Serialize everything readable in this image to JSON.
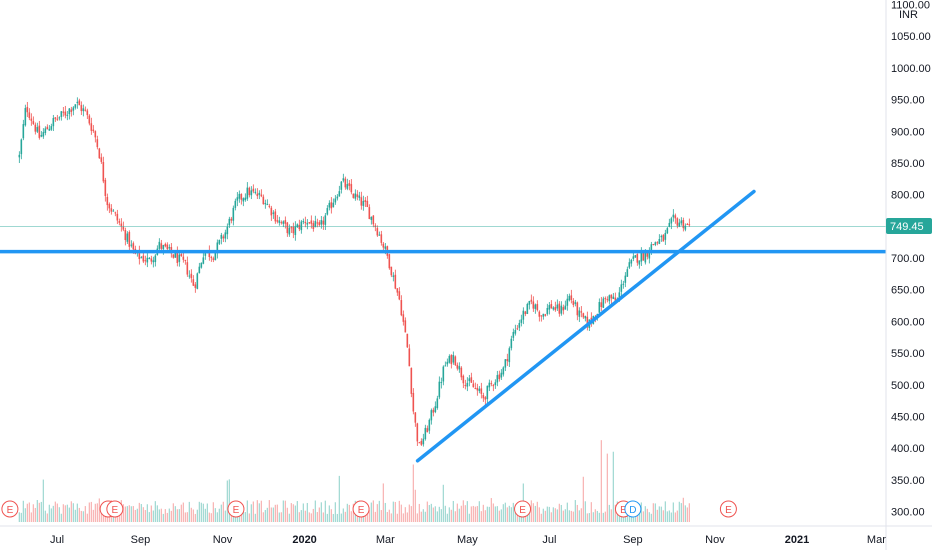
{
  "chart_data": {
    "type": "candlestick",
    "currency": "INR",
    "last_price_label": "749.45",
    "ylim": [
      280,
      1105
    ],
    "y_ticks": [
      "1100.00",
      "1050.00",
      "1000.00",
      "950.00",
      "900.00",
      "850.00",
      "800.00",
      "750.00",
      "700.00",
      "650.00",
      "600.00",
      "550.00",
      "500.00",
      "450.00",
      "400.00",
      "350.00",
      "300.00"
    ],
    "x_tick_labels": [
      "Jul",
      "Sep",
      "Nov",
      "2020",
      "Mar",
      "May",
      "Jul",
      "Sep",
      "Nov",
      "2021",
      "Mar"
    ],
    "price_path": [
      [
        "2019-06-03",
        860
      ],
      [
        "2019-06-08",
        940
      ],
      [
        "2019-06-18",
        890
      ],
      [
        "2019-06-28",
        915
      ],
      [
        "2019-07-08",
        930
      ],
      [
        "2019-07-15",
        945
      ],
      [
        "2019-07-22",
        930
      ],
      [
        "2019-07-29",
        895
      ],
      [
        "2019-08-02",
        860
      ],
      [
        "2019-08-07",
        790
      ],
      [
        "2019-08-20",
        740
      ],
      [
        "2019-08-28",
        705
      ],
      [
        "2019-09-08",
        695
      ],
      [
        "2019-09-15",
        720
      ],
      [
        "2019-09-25",
        705
      ],
      [
        "2019-10-04",
        690
      ],
      [
        "2019-10-11",
        655
      ],
      [
        "2019-10-18",
        710
      ],
      [
        "2019-10-25",
        705
      ],
      [
        "2019-11-03",
        740
      ],
      [
        "2019-11-12",
        790
      ],
      [
        "2019-11-20",
        805
      ],
      [
        "2019-12-01",
        795
      ],
      [
        "2019-12-12",
        760
      ],
      [
        "2019-12-22",
        740
      ],
      [
        "2020-01-02",
        760
      ],
      [
        "2020-01-12",
        745
      ],
      [
        "2020-01-22",
        790
      ],
      [
        "2020-01-29",
        820
      ],
      [
        "2020-02-06",
        800
      ],
      [
        "2020-02-16",
        780
      ],
      [
        "2020-02-25",
        740
      ],
      [
        "2020-03-03",
        700
      ],
      [
        "2020-03-12",
        630
      ],
      [
        "2020-03-18",
        550
      ],
      [
        "2020-03-22",
        455
      ],
      [
        "2020-03-26",
        400
      ],
      [
        "2020-04-01",
        430
      ],
      [
        "2020-04-07",
        470
      ],
      [
        "2020-04-14",
        530
      ],
      [
        "2020-04-21",
        545
      ],
      [
        "2020-04-28",
        510
      ],
      [
        "2020-05-06",
        495
      ],
      [
        "2020-05-13",
        480
      ],
      [
        "2020-05-20",
        505
      ],
      [
        "2020-05-28",
        525
      ],
      [
        "2020-06-04",
        580
      ],
      [
        "2020-06-11",
        610
      ],
      [
        "2020-06-18",
        630
      ],
      [
        "2020-06-25",
        610
      ],
      [
        "2020-07-02",
        625
      ],
      [
        "2020-07-09",
        615
      ],
      [
        "2020-07-16",
        640
      ],
      [
        "2020-07-23",
        610
      ],
      [
        "2020-07-30",
        595
      ],
      [
        "2020-08-06",
        620
      ],
      [
        "2020-08-13",
        640
      ],
      [
        "2020-08-20",
        630
      ],
      [
        "2020-08-27",
        680
      ],
      [
        "2020-09-03",
        700
      ],
      [
        "2020-09-10",
        705
      ],
      [
        "2020-09-17",
        725
      ],
      [
        "2020-09-24",
        730
      ],
      [
        "2020-10-01",
        760
      ],
      [
        "2020-10-08",
        755
      ],
      [
        "2020-10-13",
        749.45
      ]
    ],
    "horizontal_levels": [
      {
        "price": 710,
        "color": "#2196f3"
      }
    ],
    "trend_line": {
      "from": [
        "2020-03-25",
        380
      ],
      "to": [
        "2020-11-30",
        805
      ],
      "color": "#2196f3"
    },
    "current_price_line": {
      "price": 749.45,
      "color": "#26a69a"
    },
    "events": [
      {
        "label": "E",
        "date": "2019-05-27"
      },
      {
        "label": "",
        "date": "2019-08-08"
      },
      {
        "label": "E",
        "date": "2019-08-13"
      },
      {
        "label": "E",
        "date": "2019-11-11"
      },
      {
        "label": "E",
        "date": "2020-02-12"
      },
      {
        "label": "E",
        "date": "2020-06-11"
      },
      {
        "label": "E",
        "date": "2020-08-25"
      },
      {
        "label": "D",
        "date": "2020-09-01"
      },
      {
        "label": "E",
        "date": "2020-11-11"
      }
    ],
    "colors": {
      "up": "#26a69a",
      "down": "#ef5350",
      "trend": "#2196f3",
      "axis_text": "#131722",
      "price_badge": "#26a69a"
    },
    "grid": false,
    "legend": "none"
  }
}
